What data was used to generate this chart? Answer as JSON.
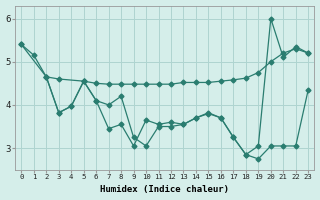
{
  "lineA_x": [
    0,
    1,
    2,
    3,
    5,
    6,
    7,
    8,
    9,
    10,
    11,
    12,
    13,
    14,
    15,
    16,
    17,
    18,
    19,
    20,
    21,
    22,
    23
  ],
  "lineA_y": [
    5.4,
    5.15,
    4.65,
    4.6,
    4.55,
    4.5,
    4.48,
    4.48,
    4.48,
    4.48,
    4.48,
    4.48,
    4.52,
    4.52,
    4.52,
    4.55,
    4.58,
    4.62,
    4.75,
    5.0,
    5.2,
    5.3,
    5.2
  ],
  "lineB_x": [
    0,
    2,
    3,
    4,
    5,
    6,
    7,
    8,
    9,
    10,
    11,
    12,
    13,
    14,
    15,
    16,
    17,
    18,
    19,
    20,
    21,
    22,
    23
  ],
  "lineB_y": [
    5.4,
    4.65,
    3.82,
    3.97,
    4.55,
    4.1,
    4.0,
    4.2,
    3.25,
    3.05,
    3.5,
    3.5,
    3.55,
    3.7,
    3.82,
    3.7,
    3.25,
    2.85,
    2.75,
    3.05,
    3.05,
    3.05,
    4.35
  ],
  "lineC_x": [
    2,
    3,
    4,
    5,
    6,
    7,
    8,
    9,
    10,
    11,
    12,
    13,
    14,
    15,
    16,
    17,
    18,
    19,
    20,
    21,
    22,
    23
  ],
  "lineC_y": [
    4.65,
    3.82,
    3.97,
    4.55,
    4.1,
    3.45,
    3.55,
    3.05,
    3.65,
    3.55,
    3.6,
    3.55,
    3.7,
    3.8,
    3.7,
    3.25,
    2.85,
    3.05,
    6.0,
    5.1,
    5.35,
    5.2
  ],
  "color": "#2a7d70",
  "bg_color": "#d5eeea",
  "grid_color": "#aed4d0",
  "xlabel": "Humidex (Indice chaleur)",
  "xlim": [
    -0.5,
    23.5
  ],
  "ylim": [
    2.5,
    6.3
  ],
  "yticks": [
    3,
    4,
    5,
    6
  ],
  "xticks": [
    0,
    1,
    2,
    3,
    4,
    5,
    6,
    7,
    8,
    9,
    10,
    11,
    12,
    13,
    14,
    15,
    16,
    17,
    18,
    19,
    20,
    21,
    22,
    23
  ]
}
